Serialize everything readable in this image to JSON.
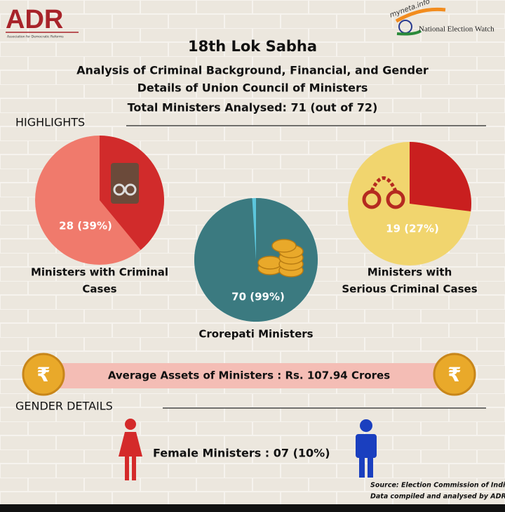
{
  "header": {
    "logo_left": "ADR",
    "logo_left_sub": "Association for Democratic Reforms",
    "logo_right_top": "myneta.info",
    "logo_right": "National Election Watch",
    "title": "18th Lok Sabha",
    "subtitle_lines": [
      "Analysis of Criminal Background, Financial, and Gender",
      "Details of Union Council of Ministers"
    ],
    "total": "Total Ministers Analysed: 71 (out of 72)"
  },
  "highlights": {
    "heading": "HIGHLIGHTS",
    "pies": [
      {
        "value": 39,
        "label": "28 (39%)",
        "caption_lines": [
          "Ministers with Criminal",
          "Cases"
        ],
        "color": "#d12b2b",
        "base_color": "#f07a6c"
      },
      {
        "value": 99,
        "label": "70 (99%)",
        "caption_lines": [
          "Crorepati Ministers"
        ],
        "color": "#3b7a80",
        "base_color": "#5cc6dc"
      },
      {
        "value": 27,
        "label": "19 (27%)",
        "caption_lines": [
          "Ministers with",
          "Serious Criminal Cases"
        ],
        "color": "#c91f1f",
        "base_color": "#f1d56e"
      }
    ]
  },
  "assets": {
    "rupee_symbol": "₹",
    "text": "Average Assets of Ministers : Rs. 107.94 Crores"
  },
  "gender": {
    "heading": "GENDER DETAILS",
    "female": "Female Ministers : 07 (10%)"
  },
  "source_lines": [
    "Source: Election Commission of India",
    "Data compiled and analysed by ADR"
  ]
}
